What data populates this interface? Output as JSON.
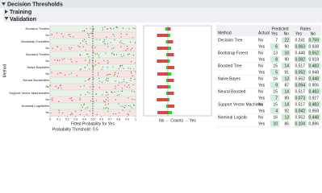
{
  "header": {
    "title": "Decision Thresholds",
    "sections": [
      "Training",
      "Validation"
    ]
  },
  "chart_data": {
    "type": "strip",
    "y_label": "Method",
    "x_label": "Fitted Probability for Yes",
    "threshold_label": "Probability Threshold:",
    "threshold": 0.5,
    "methods": [
      "Decision Tree",
      "Bootstrap Forest",
      "Boosted Tree",
      "Naive Bayes",
      "Neural Boosted",
      "Support Vector Machines",
      "Nominal Logistic"
    ],
    "levels": [
      "Yes",
      "No"
    ],
    "xlim": [
      0,
      1
    ],
    "xticks": [
      0,
      0.1,
      0.2,
      0.3,
      0.4,
      0.5,
      0.6,
      0.7,
      0.8,
      0.9,
      1
    ],
    "counts_label": "No ← Counts → Yes"
  },
  "table": {
    "columns": [
      "Method",
      "Actual",
      "Predicted",
      "Rates"
    ],
    "subcolumns": [
      "Yes",
      "No",
      "Yes",
      "No"
    ],
    "rows": [
      {
        "method": "Decision Tree",
        "actual": [
          {
            "level": "No",
            "counts": [
              7,
              22
            ],
            "rates": [
              0.241,
              0.759
            ]
          },
          {
            "level": "Yes",
            "counts": [
              6,
              90
            ],
            "rates": [
              0.063,
              0.938
            ]
          }
        ]
      },
      {
        "method": "Bootstrap Forest",
        "actual": [
          {
            "level": "No",
            "counts": [
              13,
              16
            ],
            "rates": [
              0.448,
              0.552
            ]
          },
          {
            "level": "Yes",
            "counts": [
              8,
              90
            ],
            "rates": [
              0.082,
              0.918
            ]
          }
        ]
      },
      {
        "method": "Boosted Tree",
        "actual": [
          {
            "level": "No",
            "counts": [
              15,
              14
            ],
            "rates": [
              0.517,
              0.483
            ]
          },
          {
            "level": "Yes",
            "counts": [
              5,
              91
            ],
            "rates": [
              0.052,
              0.948
            ]
          }
        ]
      },
      {
        "method": "Naive Bayes",
        "actual": [
          {
            "level": "No",
            "counts": [
              16,
              13
            ],
            "rates": [
              0.552,
              0.448
            ]
          },
          {
            "level": "Yes",
            "counts": [
              9,
              87
            ],
            "rates": [
              0.094,
              0.906
            ]
          }
        ]
      },
      {
        "method": "Neural Boosted",
        "actual": [
          {
            "level": "No",
            "counts": [
              15,
              14
            ],
            "rates": [
              0.517,
              0.483
            ]
          },
          {
            "level": "Yes",
            "counts": [
              7,
              89
            ],
            "rates": [
              0.073,
              0.927
            ]
          }
        ]
      },
      {
        "method": "Support Vector Machines",
        "actual": [
          {
            "level": "No",
            "counts": [
              15,
              14
            ],
            "rates": [
              0.517,
              0.483
            ]
          },
          {
            "level": "Yes",
            "counts": [
              4,
              92
            ],
            "rates": [
              0.042,
              0.958
            ]
          }
        ]
      },
      {
        "method": "Nominal Logistic",
        "actual": [
          {
            "level": "No",
            "counts": [
              16,
              13
            ],
            "rates": [
              0.552,
              0.448
            ]
          },
          {
            "level": "Yes",
            "counts": [
              10,
              86
            ],
            "rates": [
              0.104,
              0.896
            ]
          }
        ]
      }
    ]
  }
}
